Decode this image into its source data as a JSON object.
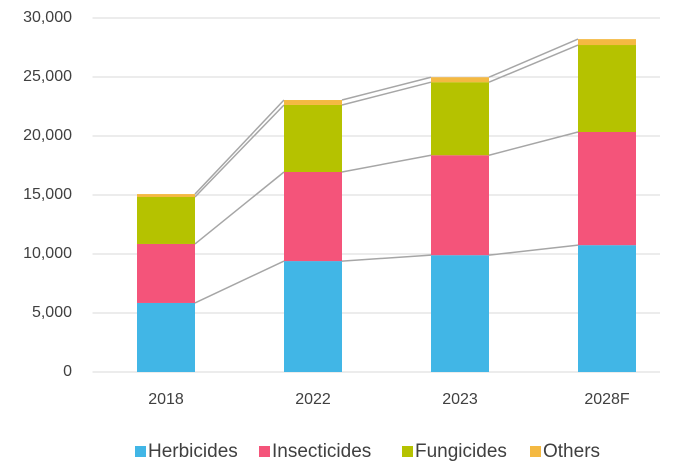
{
  "chart_data": {
    "type": "stacked_bar",
    "categories": [
      "2018",
      "2022",
      "2023",
      "2028F"
    ],
    "series": [
      {
        "name": "Herbicides",
        "color": "#41b6e6",
        "values": [
          5850,
          9400,
          9900,
          10750
        ]
      },
      {
        "name": "Insecticides",
        "color": "#f4547a",
        "values": [
          5000,
          7550,
          8470,
          9590
        ]
      },
      {
        "name": "Fungicides",
        "color": "#b5c200",
        "values": [
          3980,
          5680,
          6190,
          7370
        ]
      },
      {
        "name": "Others",
        "color": "#f4b942",
        "values": [
          250,
          420,
          420,
          500
        ]
      }
    ],
    "ylim": [
      0,
      30000
    ],
    "yticks": [
      0,
      {
        "value": 5000,
        "label": "5,000"
      },
      {
        "value": 10000,
        "label": "10,000"
      },
      {
        "value": 15000,
        "label": "15,000"
      },
      {
        "value": 20000,
        "label": "20,000"
      },
      {
        "value": 25000,
        "label": "25,000"
      },
      {
        "value": 30000,
        "label": "30,000"
      }
    ],
    "grid": true,
    "legend": "bottom"
  }
}
